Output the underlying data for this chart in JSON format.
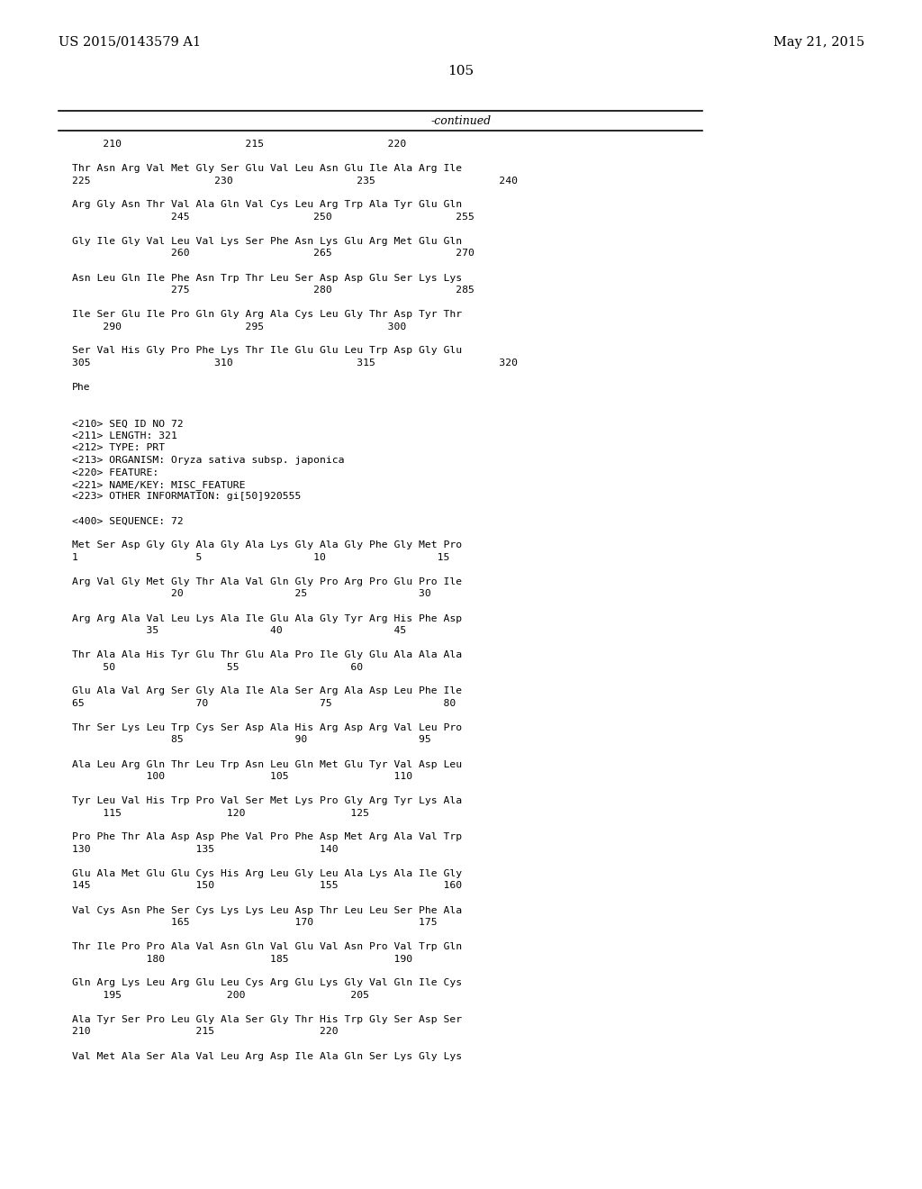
{
  "top_left": "US 2015/0143579 A1",
  "top_right": "May 21, 2015",
  "page_number": "105",
  "continued_label": "-continued",
  "background_color": "#ffffff",
  "text_color": "#000000",
  "font_size": 8.5,
  "mono_font": "DejaVu Sans Mono",
  "serif_font": "DejaVu Serif",
  "content_lines": [
    {
      "text": "     210                    215                    220",
      "indent": 0,
      "mono": true
    },
    {
      "text": "",
      "indent": 0,
      "mono": true
    },
    {
      "text": "Thr Asn Arg Val Met Gly Ser Glu Val Leu Asn Glu Ile Ala Arg Ile",
      "indent": 0,
      "mono": true
    },
    {
      "text": "225                    230                    235                    240",
      "indent": 0,
      "mono": true
    },
    {
      "text": "",
      "indent": 0,
      "mono": true
    },
    {
      "text": "Arg Gly Asn Thr Val Ala Gln Val Cys Leu Arg Trp Ala Tyr Glu Gln",
      "indent": 0,
      "mono": true
    },
    {
      "text": "                245                    250                    255",
      "indent": 0,
      "mono": true
    },
    {
      "text": "",
      "indent": 0,
      "mono": true
    },
    {
      "text": "Gly Ile Gly Val Leu Val Lys Ser Phe Asn Lys Glu Arg Met Glu Gln",
      "indent": 0,
      "mono": true
    },
    {
      "text": "                260                    265                    270",
      "indent": 0,
      "mono": true
    },
    {
      "text": "",
      "indent": 0,
      "mono": true
    },
    {
      "text": "Asn Leu Gln Ile Phe Asn Trp Thr Leu Ser Asp Asp Glu Ser Lys Lys",
      "indent": 0,
      "mono": true
    },
    {
      "text": "                275                    280                    285",
      "indent": 0,
      "mono": true
    },
    {
      "text": "",
      "indent": 0,
      "mono": true
    },
    {
      "text": "Ile Ser Glu Ile Pro Gln Gly Arg Ala Cys Leu Gly Thr Asp Tyr Thr",
      "indent": 0,
      "mono": true
    },
    {
      "text": "     290                    295                    300",
      "indent": 0,
      "mono": true
    },
    {
      "text": "",
      "indent": 0,
      "mono": true
    },
    {
      "text": "Ser Val His Gly Pro Phe Lys Thr Ile Glu Glu Leu Trp Asp Gly Glu",
      "indent": 0,
      "mono": true
    },
    {
      "text": "305                    310                    315                    320",
      "indent": 0,
      "mono": true
    },
    {
      "text": "",
      "indent": 0,
      "mono": true
    },
    {
      "text": "Phe",
      "indent": 0,
      "mono": true
    },
    {
      "text": "",
      "indent": 0,
      "mono": true
    },
    {
      "text": "",
      "indent": 0,
      "mono": true
    },
    {
      "text": "<210> SEQ ID NO 72",
      "indent": 0,
      "mono": true
    },
    {
      "text": "<211> LENGTH: 321",
      "indent": 0,
      "mono": true
    },
    {
      "text": "<212> TYPE: PRT",
      "indent": 0,
      "mono": true
    },
    {
      "text": "<213> ORGANISM: Oryza sativa subsp. japonica",
      "indent": 0,
      "mono": true
    },
    {
      "text": "<220> FEATURE:",
      "indent": 0,
      "mono": true
    },
    {
      "text": "<221> NAME/KEY: MISC_FEATURE",
      "indent": 0,
      "mono": true
    },
    {
      "text": "<223> OTHER INFORMATION: gi[50]920555",
      "indent": 0,
      "mono": true
    },
    {
      "text": "",
      "indent": 0,
      "mono": true
    },
    {
      "text": "<400> SEQUENCE: 72",
      "indent": 0,
      "mono": true
    },
    {
      "text": "",
      "indent": 0,
      "mono": true
    },
    {
      "text": "Met Ser Asp Gly Gly Ala Gly Ala Lys Gly Ala Gly Phe Gly Met Pro",
      "indent": 0,
      "mono": true
    },
    {
      "text": "1                   5                  10                  15",
      "indent": 0,
      "mono": true
    },
    {
      "text": "",
      "indent": 0,
      "mono": true
    },
    {
      "text": "Arg Val Gly Met Gly Thr Ala Val Gln Gly Pro Arg Pro Glu Pro Ile",
      "indent": 0,
      "mono": true
    },
    {
      "text": "                20                  25                  30",
      "indent": 0,
      "mono": true
    },
    {
      "text": "",
      "indent": 0,
      "mono": true
    },
    {
      "text": "Arg Arg Ala Val Leu Lys Ala Ile Glu Ala Gly Tyr Arg His Phe Asp",
      "indent": 0,
      "mono": true
    },
    {
      "text": "            35                  40                  45",
      "indent": 0,
      "mono": true
    },
    {
      "text": "",
      "indent": 0,
      "mono": true
    },
    {
      "text": "Thr Ala Ala His Tyr Glu Thr Glu Ala Pro Ile Gly Glu Ala Ala Ala",
      "indent": 0,
      "mono": true
    },
    {
      "text": "     50                  55                  60",
      "indent": 0,
      "mono": true
    },
    {
      "text": "",
      "indent": 0,
      "mono": true
    },
    {
      "text": "Glu Ala Val Arg Ser Gly Ala Ile Ala Ser Arg Ala Asp Leu Phe Ile",
      "indent": 0,
      "mono": true
    },
    {
      "text": "65                  70                  75                  80",
      "indent": 0,
      "mono": true
    },
    {
      "text": "",
      "indent": 0,
      "mono": true
    },
    {
      "text": "Thr Ser Lys Leu Trp Cys Ser Asp Ala His Arg Asp Arg Val Leu Pro",
      "indent": 0,
      "mono": true
    },
    {
      "text": "                85                  90                  95",
      "indent": 0,
      "mono": true
    },
    {
      "text": "",
      "indent": 0,
      "mono": true
    },
    {
      "text": "Ala Leu Arg Gln Thr Leu Trp Asn Leu Gln Met Glu Tyr Val Asp Leu",
      "indent": 0,
      "mono": true
    },
    {
      "text": "            100                 105                 110",
      "indent": 0,
      "mono": true
    },
    {
      "text": "",
      "indent": 0,
      "mono": true
    },
    {
      "text": "Tyr Leu Val His Trp Pro Val Ser Met Lys Pro Gly Arg Tyr Lys Ala",
      "indent": 0,
      "mono": true
    },
    {
      "text": "     115                 120                 125",
      "indent": 0,
      "mono": true
    },
    {
      "text": "",
      "indent": 0,
      "mono": true
    },
    {
      "text": "Pro Phe Thr Ala Asp Asp Phe Val Pro Phe Asp Met Arg Ala Val Trp",
      "indent": 0,
      "mono": true
    },
    {
      "text": "130                 135                 140",
      "indent": 0,
      "mono": true
    },
    {
      "text": "",
      "indent": 0,
      "mono": true
    },
    {
      "text": "Glu Ala Met Glu Glu Cys His Arg Leu Gly Leu Ala Lys Ala Ile Gly",
      "indent": 0,
      "mono": true
    },
    {
      "text": "145                 150                 155                 160",
      "indent": 0,
      "mono": true
    },
    {
      "text": "",
      "indent": 0,
      "mono": true
    },
    {
      "text": "Val Cys Asn Phe Ser Cys Lys Lys Leu Asp Thr Leu Leu Ser Phe Ala",
      "indent": 0,
      "mono": true
    },
    {
      "text": "                165                 170                 175",
      "indent": 0,
      "mono": true
    },
    {
      "text": "",
      "indent": 0,
      "mono": true
    },
    {
      "text": "Thr Ile Pro Pro Ala Val Asn Gln Val Glu Val Asn Pro Val Trp Gln",
      "indent": 0,
      "mono": true
    },
    {
      "text": "            180                 185                 190",
      "indent": 0,
      "mono": true
    },
    {
      "text": "",
      "indent": 0,
      "mono": true
    },
    {
      "text": "Gln Arg Lys Leu Arg Glu Leu Cys Arg Glu Lys Gly Val Gln Ile Cys",
      "indent": 0,
      "mono": true
    },
    {
      "text": "     195                 200                 205",
      "indent": 0,
      "mono": true
    },
    {
      "text": "",
      "indent": 0,
      "mono": true
    },
    {
      "text": "Ala Tyr Ser Pro Leu Gly Ala Ser Gly Thr His Trp Gly Ser Asp Ser",
      "indent": 0,
      "mono": true
    },
    {
      "text": "210                 215                 220",
      "indent": 0,
      "mono": true
    },
    {
      "text": "",
      "indent": 0,
      "mono": true
    },
    {
      "text": "Val Met Ala Ser Ala Val Leu Arg Asp Ile Ala Gln Ser Lys Gly Lys",
      "indent": 0,
      "mono": true
    }
  ]
}
